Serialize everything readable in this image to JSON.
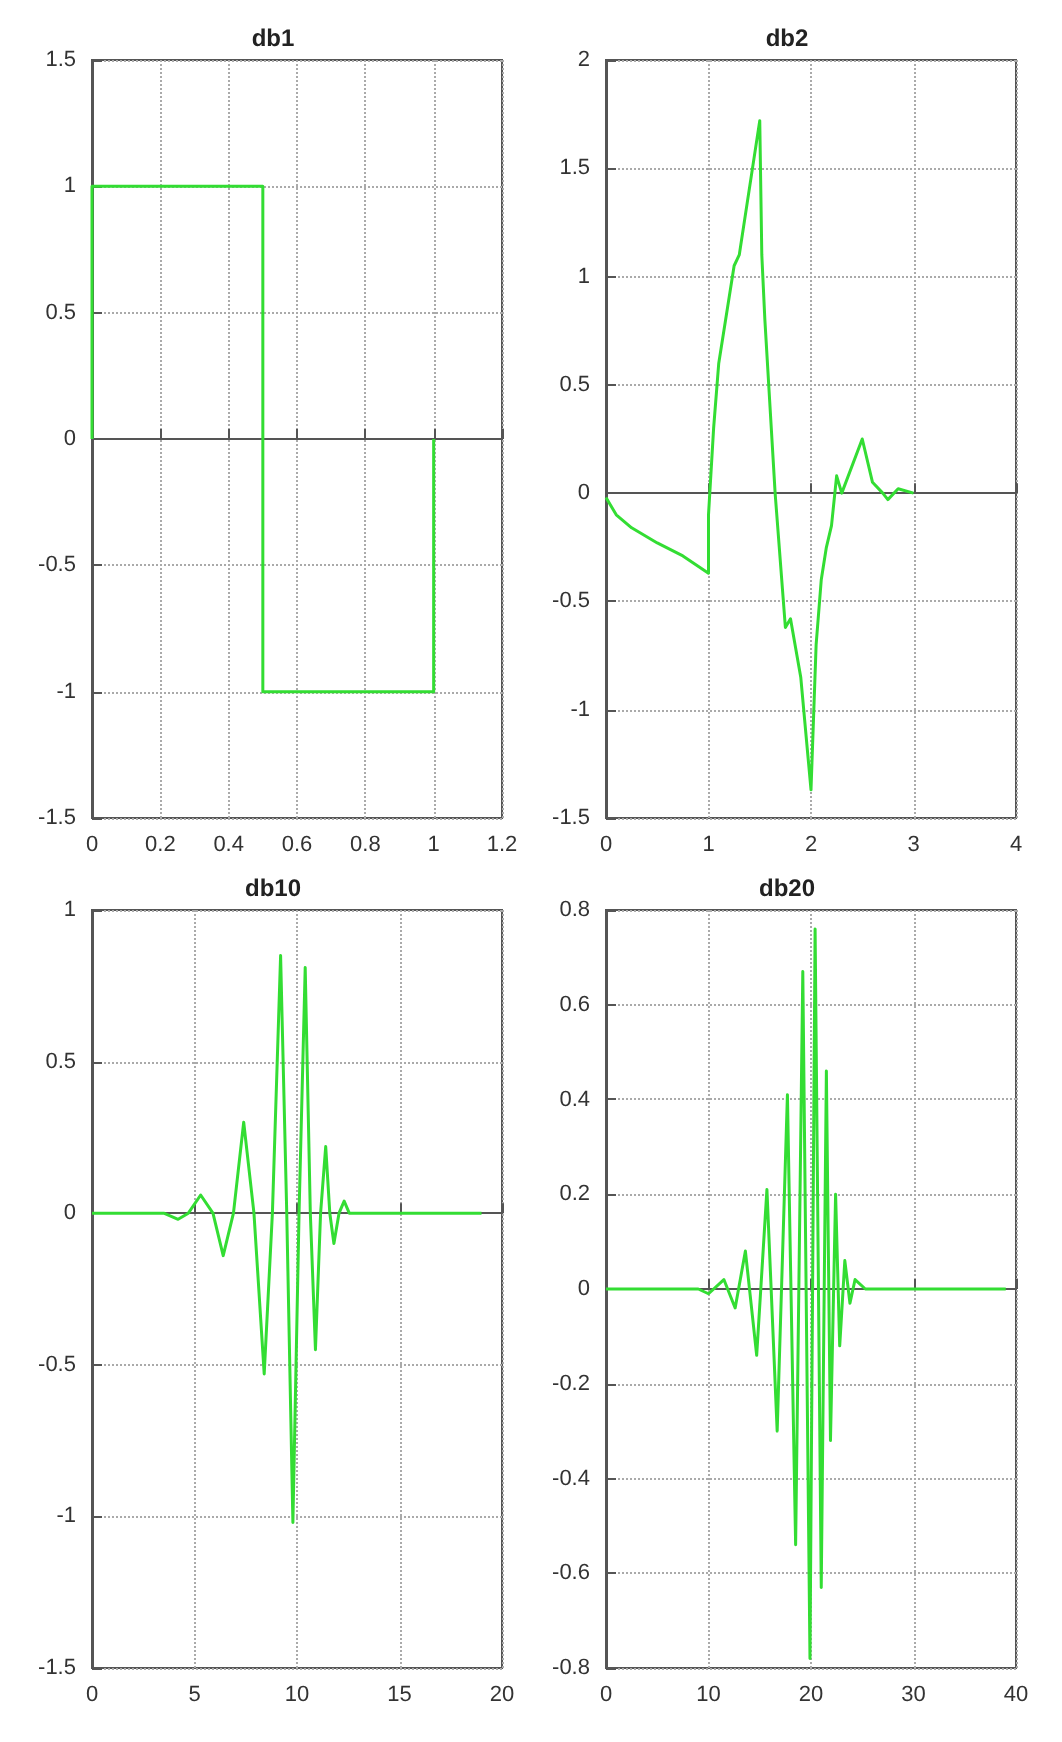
{
  "chart_data": [
    {
      "type": "line",
      "title": "db1",
      "x": [
        0,
        0,
        0.5,
        0.5,
        1,
        1
      ],
      "series": [
        {
          "color": "#33dd33",
          "values": [
            0,
            1,
            1,
            -1,
            -1,
            0
          ]
        }
      ],
      "xlim": [
        0,
        1.2
      ],
      "xticks": [
        0,
        0.2,
        0.4,
        0.6,
        0.8,
        1,
        1.2
      ],
      "ylim": [
        -1.5,
        1.5
      ],
      "yticks": [
        -1.5,
        -1,
        -0.5,
        0,
        0.5,
        1,
        1.5
      ],
      "grid": true
    },
    {
      "type": "line",
      "title": "db2",
      "x": [
        0,
        0.1,
        0.25,
        0.5,
        0.75,
        1,
        1,
        1.05,
        1.1,
        1.25,
        1.3,
        1.5,
        1.52,
        1.55,
        1.6,
        1.65,
        1.75,
        1.8,
        1.9,
        2,
        2.05,
        2.1,
        2.15,
        2.2,
        2.25,
        2.3,
        2.5,
        2.6,
        2.7,
        2.75,
        2.85,
        3
      ],
      "series": [
        {
          "color": "#33dd33",
          "values": [
            -0.02,
            -0.1,
            -0.16,
            -0.23,
            -0.29,
            -0.37,
            -0.1,
            0.3,
            0.6,
            1.05,
            1.1,
            1.72,
            1.1,
            0.8,
            0.4,
            0,
            -0.62,
            -0.58,
            -0.85,
            -1.37,
            -0.7,
            -0.4,
            -0.25,
            -0.15,
            0.08,
            0,
            0.25,
            0.05,
            0,
            -0.03,
            0.02,
            0
          ]
        }
      ],
      "xlim": [
        0,
        4
      ],
      "xticks": [
        0,
        1,
        2,
        3,
        4
      ],
      "ylim": [
        -1.5,
        2
      ],
      "yticks": [
        -1.5,
        -1,
        -0.5,
        0,
        0.5,
        1,
        1.5,
        2
      ],
      "grid": true
    },
    {
      "type": "line",
      "title": "db10",
      "x": [
        0,
        3.5,
        4.2,
        4.7,
        5.3,
        5.9,
        6.4,
        6.9,
        7.4,
        7.9,
        8.4,
        8.8,
        9.2,
        9.5,
        9.8,
        10.1,
        10.4,
        10.65,
        10.9,
        11.15,
        11.4,
        11.6,
        11.8,
        12.05,
        12.3,
        12.55,
        12.8,
        19
      ],
      "series": [
        {
          "color": "#33dd33",
          "values": [
            0,
            0,
            -0.02,
            0,
            0.06,
            0,
            -0.14,
            0,
            0.3,
            0,
            -0.53,
            0,
            0.85,
            0,
            -1.02,
            0,
            0.81,
            0,
            -0.45,
            0,
            0.22,
            0,
            -0.1,
            0,
            0.04,
            0,
            0,
            0
          ]
        }
      ],
      "xlim": [
        0,
        20
      ],
      "xticks": [
        0,
        5,
        10,
        15,
        20
      ],
      "ylim": [
        -1.5,
        1
      ],
      "yticks": [
        -1.5,
        -1,
        -0.5,
        0,
        0.5,
        1
      ],
      "grid": true
    },
    {
      "type": "line",
      "title": "db20",
      "x": [
        0,
        9,
        10,
        11.5,
        12.6,
        13.6,
        14.7,
        15.7,
        16.7,
        17.7,
        18.5,
        19.2,
        19.9,
        20.4,
        21,
        21.5,
        21.9,
        22.4,
        22.8,
        23.3,
        23.8,
        24.3,
        25.3,
        39
      ],
      "series": [
        {
          "color": "#33dd33",
          "values": [
            0,
            0,
            -0.01,
            0.02,
            -0.04,
            0.08,
            -0.14,
            0.21,
            -0.3,
            0.41,
            -0.54,
            0.67,
            -0.78,
            0.76,
            -0.63,
            0.46,
            -0.32,
            0.2,
            -0.12,
            0.06,
            -0.03,
            0.02,
            0,
            0
          ]
        }
      ],
      "xlim": [
        0,
        40
      ],
      "xticks": [
        0,
        10,
        20,
        30,
        40
      ],
      "ylim": [
        -0.8,
        0.8
      ],
      "yticks": [
        -0.8,
        -0.6,
        -0.4,
        -0.2,
        0,
        0.2,
        0.4,
        0.6,
        0.8
      ],
      "grid": true
    }
  ]
}
